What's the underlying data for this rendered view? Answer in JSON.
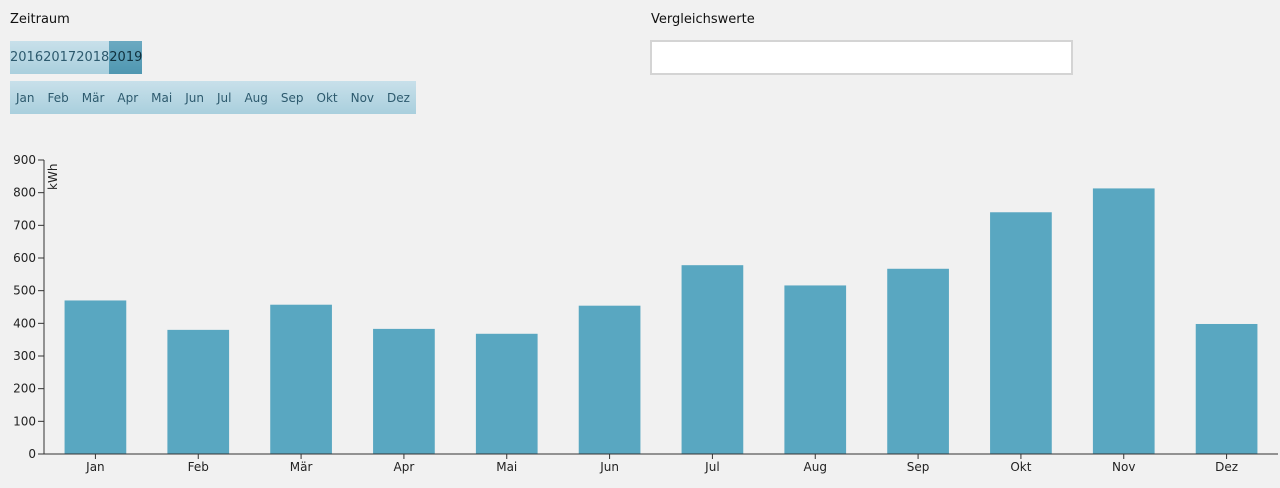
{
  "zeitraum": {
    "title": "Zeitraum",
    "years": [
      {
        "label": "2016",
        "selected": false
      },
      {
        "label": "2017",
        "selected": false
      },
      {
        "label": "2018",
        "selected": false
      },
      {
        "label": "2019",
        "selected": true
      }
    ],
    "months": [
      "Jan",
      "Feb",
      "Mär",
      "Apr",
      "Mai",
      "Jun",
      "Jul",
      "Aug",
      "Sep",
      "Okt",
      "Nov",
      "Dez"
    ]
  },
  "vergleichswerte": {
    "title": "Vergleichswerte",
    "value": "",
    "placeholder": ""
  },
  "colors": {
    "bar": "#59a7c1",
    "axis": "#333333",
    "background": "#f1f1f1"
  },
  "chart_data": {
    "type": "bar",
    "categories": [
      "Jan",
      "Feb",
      "Mär",
      "Apr",
      "Mai",
      "Jun",
      "Jul",
      "Aug",
      "Sep",
      "Okt",
      "Nov",
      "Dez"
    ],
    "values": [
      470,
      380,
      457,
      383,
      368,
      454,
      578,
      516,
      567,
      740,
      813,
      398
    ],
    "ylabel": "kWh",
    "ylim": [
      0,
      900
    ],
    "yticks": [
      0,
      100,
      200,
      300,
      400,
      500,
      600,
      700,
      800,
      900
    ],
    "grid": false,
    "legend": "none"
  }
}
